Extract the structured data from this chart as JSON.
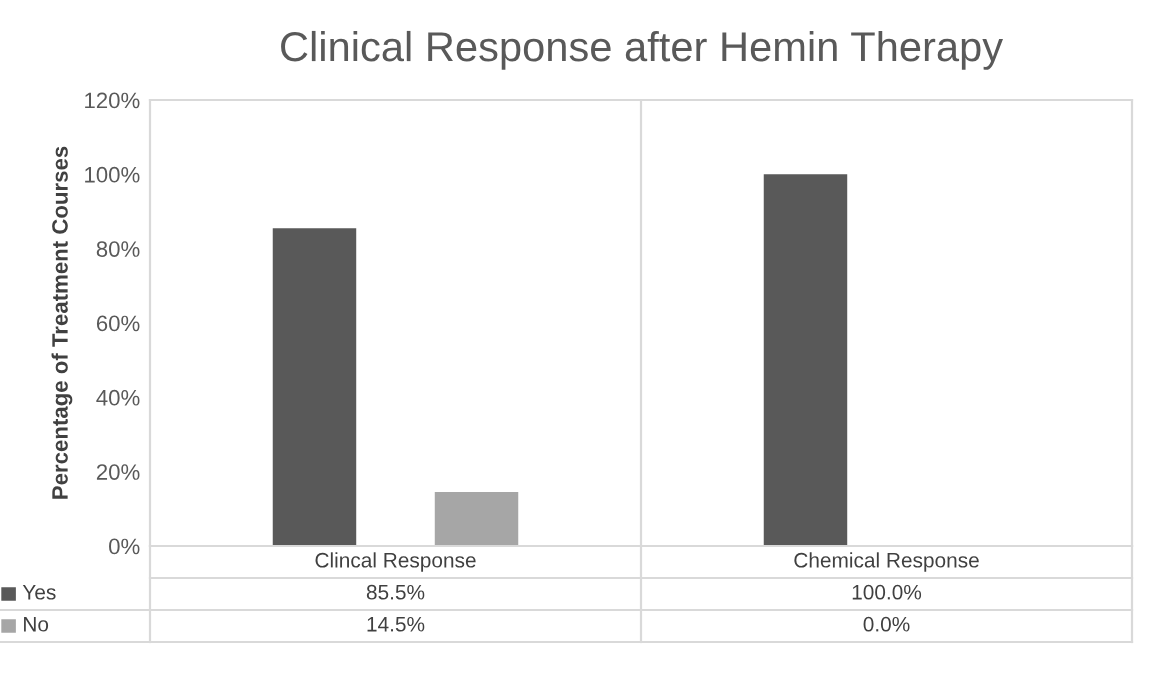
{
  "chart_data": {
    "type": "bar",
    "title": "Clinical Response after Hemin Therapy",
    "ylabel": "Percentage of Treatment Courses",
    "categories": [
      "Clincal Response",
      "Chemical Response"
    ],
    "series": [
      {
        "name": "Yes",
        "color": "#595959",
        "values": [
          85.5,
          100.0
        ],
        "value_labels": [
          "85.5%",
          "100.0%"
        ]
      },
      {
        "name": "No",
        "color": "#a6a6a6",
        "values": [
          14.5,
          0.0
        ],
        "value_labels": [
          "14.5%",
          "0.0%"
        ]
      }
    ],
    "ylim": [
      0,
      120
    ],
    "yticks": [
      {
        "value": 0,
        "label": "0%"
      },
      {
        "value": 20,
        "label": "20%"
      },
      {
        "value": 40,
        "label": "40%"
      },
      {
        "value": 60,
        "label": "60%"
      },
      {
        "value": 80,
        "label": "80%"
      },
      {
        "value": 100,
        "label": "100%"
      },
      {
        "value": 120,
        "label": "120%"
      }
    ],
    "grid": false,
    "legend": "bottom"
  }
}
